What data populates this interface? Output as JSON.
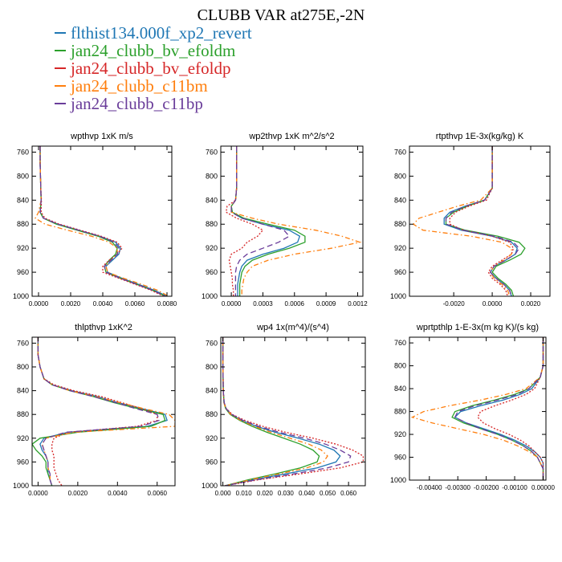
{
  "title": "CLUBB VAR at275E,-2N",
  "legend": [
    {
      "label": "flthist134.000f_xp2_revert",
      "color": "#1f77b4"
    },
    {
      "label": "jan24_clubb_bv_efoldm",
      "color": "#2ca02c"
    },
    {
      "label": "jan24_clubb_bv_efoldp",
      "color": "#d62728"
    },
    {
      "label": "jan24_clubb_c11bm",
      "color": "#ff7f0e"
    },
    {
      "label": "jan24_clubb_c11bp",
      "color": "#6a3d9a"
    }
  ],
  "chart_data": [
    {
      "type": "line",
      "title": "wpthvp  1xK m/s",
      "xlim": [
        -0.0004,
        0.0083
      ],
      "ylim": [
        1000,
        750
      ],
      "xticks": [
        0.0,
        0.002,
        0.004,
        0.006,
        0.008
      ],
      "xticklabels": [
        "0.0000",
        "0.0020",
        "0.0040",
        "0.0060",
        "0.0080"
      ],
      "yticks": [
        760,
        800,
        840,
        880,
        920,
        960,
        1000
      ],
      "y": [
        750,
        760,
        780,
        800,
        820,
        840,
        860,
        870,
        880,
        890,
        900,
        910,
        920,
        930,
        940,
        950,
        960,
        970,
        980,
        990,
        1000
      ],
      "series": [
        {
          "values": [
            0.0001,
            0.0001,
            0.0001,
            0.00012,
            0.00014,
            0.00016,
            0.0001,
            0.0003,
            0.0012,
            0.0025,
            0.0038,
            0.0048,
            0.0051,
            0.005,
            0.0046,
            0.0042,
            0.0043,
            0.0052,
            0.0062,
            0.0072,
            0.008
          ]
        },
        {
          "values": [
            0.0001,
            0.0001,
            0.0001,
            0.00012,
            0.00014,
            0.00016,
            0.0001,
            0.0003,
            0.0011,
            0.0024,
            0.0037,
            0.0046,
            0.0049,
            0.0048,
            0.0044,
            0.0041,
            0.0042,
            0.0051,
            0.0061,
            0.0071,
            0.0079
          ]
        },
        {
          "values": [
            0.0001,
            0.0001,
            0.0001,
            0.00012,
            0.00014,
            0.00018,
            0.00016,
            0.0004,
            0.0013,
            0.0026,
            0.0039,
            0.0049,
            0.0052,
            0.0049,
            0.0044,
            0.004,
            0.004,
            0.005,
            0.006,
            0.007,
            0.0078
          ]
        },
        {
          "values": [
            0.0001,
            0.0001,
            0.0001,
            0.00012,
            0.00014,
            0.00016,
            0.0,
            -0.0002,
            0.0004,
            0.0018,
            0.0033,
            0.0044,
            0.0049,
            0.0049,
            0.0045,
            0.0042,
            0.0043,
            0.0053,
            0.0064,
            0.0074,
            0.0081
          ]
        },
        {
          "values": [
            0.0001,
            0.0001,
            0.0001,
            0.00012,
            0.00014,
            0.00016,
            0.0001,
            0.0003,
            0.0012,
            0.0025,
            0.0038,
            0.0047,
            0.005,
            0.0049,
            0.0045,
            0.0041,
            0.0042,
            0.0051,
            0.0061,
            0.0071,
            0.0079
          ]
        }
      ]
    },
    {
      "type": "line",
      "title": "wp2thvp  1xK m^2/s^2",
      "xlim": [
        -0.0001,
        0.00125
      ],
      "ylim": [
        1000,
        750
      ],
      "xticks": [
        0.0,
        0.0003,
        0.0006,
        0.0009,
        0.0012
      ],
      "xticklabels": [
        "0.0000",
        "0.0003",
        "0.0006",
        "0.0009",
        "0.0012"
      ],
      "yticks": [
        760,
        800,
        840,
        880,
        920,
        960,
        1000
      ],
      "y": [
        750,
        760,
        780,
        800,
        820,
        840,
        850,
        860,
        870,
        880,
        890,
        900,
        910,
        920,
        930,
        940,
        950,
        960,
        970,
        980,
        990,
        1000
      ],
      "series": [
        {
          "values": [
            5e-05,
            5e-05,
            5e-05,
            5e-05,
            5e-05,
            4e-05,
            0.0,
            1e-05,
            0.0001,
            0.0003,
            0.00055,
            0.00065,
            0.00063,
            0.0005,
            0.0003,
            0.00015,
            0.0001,
            8e-05,
            7e-05,
            6e-05,
            6e-05,
            6e-05
          ]
        },
        {
          "values": [
            5e-05,
            5e-05,
            5e-05,
            5e-05,
            5e-05,
            4e-05,
            0.0,
            1e-05,
            0.00012,
            0.00035,
            0.0006,
            0.0007,
            0.0007,
            0.00055,
            0.00035,
            0.0002,
            0.00013,
            0.0001,
            9e-05,
            8e-05,
            8e-05,
            8e-05
          ]
        },
        {
          "values": [
            5e-05,
            5e-05,
            5e-05,
            5e-05,
            5e-05,
            4e-05,
            -4e-05,
            -5e-05,
            5e-05,
            0.0002,
            0.0003,
            0.00025,
            0.00015,
            0.0001,
            0.0,
            -2e-05,
            -1e-05,
            0.0,
            1e-05,
            1e-05,
            2e-05,
            2e-05
          ]
        },
        {
          "values": [
            5e-05,
            5e-05,
            5e-05,
            5e-05,
            5e-05,
            4e-05,
            0.0,
            0.0,
            0.0002,
            0.00045,
            0.0008,
            0.00105,
            0.00122,
            0.00095,
            0.0006,
            0.00035,
            0.0002,
            0.00015,
            0.00012,
            0.00011,
            0.0001,
            0.0001
          ]
        },
        {
          "values": [
            5e-05,
            5e-05,
            5e-05,
            5e-05,
            5e-05,
            4e-05,
            0.0,
            0.0,
            0.0001,
            0.0003,
            0.0005,
            0.00055,
            0.00045,
            0.0003,
            0.00015,
            8e-05,
            5e-05,
            4e-05,
            4e-05,
            4e-05,
            4e-05,
            4e-05
          ]
        }
      ]
    },
    {
      "type": "line",
      "title": "rtpthvp  1E-3x(kg/kg) K",
      "xlim": [
        -0.0043,
        0.003
      ],
      "ylim": [
        1000,
        750
      ],
      "xticks": [
        -0.002,
        0.0,
        0.002
      ],
      "xticklabels": [
        "-0.0020",
        "0.0000",
        "0.0020"
      ],
      "yticks": [
        760,
        800,
        840,
        880,
        920,
        960,
        1000
      ],
      "y": [
        750,
        760,
        780,
        800,
        820,
        840,
        850,
        860,
        870,
        880,
        890,
        900,
        910,
        920,
        930,
        940,
        950,
        960,
        970,
        980,
        990,
        1000
      ],
      "series": [
        {
          "values": [
            0.0,
            0.0,
            0.0,
            0.0,
            0.0,
            -0.0004,
            -0.0014,
            -0.0022,
            -0.0025,
            -0.0025,
            -0.0016,
            0.0,
            0.001,
            0.0013,
            0.0012,
            0.0007,
            0.0001,
            -0.0001,
            0.0002,
            0.0006,
            0.0009,
            0.001
          ]
        },
        {
          "values": [
            0.0,
            0.0,
            0.0,
            0.0,
            0.0,
            -0.0004,
            -0.0013,
            -0.002,
            -0.0024,
            -0.0024,
            -0.0014,
            0.0003,
            0.0014,
            0.0017,
            0.0015,
            0.0009,
            0.0002,
            0.0,
            0.0003,
            0.0007,
            0.001,
            0.0011
          ]
        },
        {
          "values": [
            0.0,
            0.0,
            0.0,
            0.0,
            0.0,
            -0.0003,
            -0.0012,
            -0.0019,
            -0.0022,
            -0.0022,
            -0.0015,
            0.0,
            0.0009,
            0.0011,
            0.001,
            0.0005,
            0.0,
            -0.0002,
            0.0,
            0.0004,
            0.0007,
            0.0008
          ]
        },
        {
          "values": [
            0.0,
            0.0,
            0.0,
            0.0,
            0.0,
            -0.0006,
            -0.0018,
            -0.0028,
            -0.0038,
            -0.0041,
            -0.0036,
            -0.0011,
            0.0005,
            0.001,
            0.001,
            0.0006,
            0.0001,
            -0.0001,
            0.0001,
            0.0005,
            0.0008,
            0.0009
          ]
        },
        {
          "values": [
            0.0,
            0.0,
            0.0,
            0.0,
            0.0,
            -0.0004,
            -0.0014,
            -0.0021,
            -0.0024,
            -0.0024,
            -0.0015,
            0.0001,
            0.0011,
            0.0014,
            0.0012,
            0.0007,
            0.0001,
            -0.0001,
            0.0002,
            0.0006,
            0.0009,
            0.001
          ]
        }
      ]
    },
    {
      "type": "line",
      "title": "thlpthvp  1xK^2",
      "xlim": [
        -0.0003,
        0.0069
      ],
      "ylim": [
        1000,
        750
      ],
      "xticks": [
        0.0,
        0.002,
        0.004,
        0.006
      ],
      "xticklabels": [
        "0.0000",
        "0.0020",
        "0.0040",
        "0.0060"
      ],
      "yticks": [
        760,
        800,
        840,
        880,
        920,
        960,
        1000
      ],
      "y": [
        750,
        760,
        780,
        800,
        820,
        830,
        840,
        850,
        860,
        870,
        880,
        890,
        900,
        910,
        920,
        930,
        940,
        950,
        960,
        970,
        980,
        990,
        1000
      ],
      "series": [
        {
          "values": [
            0.0,
            0.0,
            0.0,
            0.0001,
            0.0003,
            0.0007,
            0.0017,
            0.003,
            0.004,
            0.0052,
            0.0064,
            0.0065,
            0.0055,
            0.0015,
            0.0003,
            0.0001,
            0.0002,
            0.0004,
            0.0005,
            0.0005,
            0.0005,
            0.0006,
            0.0007
          ]
        },
        {
          "values": [
            0.0,
            0.0,
            0.0,
            0.0001,
            0.0003,
            0.0007,
            0.0016,
            0.0028,
            0.0038,
            0.005,
            0.0063,
            0.0064,
            0.0057,
            0.002,
            0.0001,
            -0.0003,
            -0.0001,
            0.0002,
            0.0004,
            0.0004,
            0.0005,
            0.0006,
            0.0007
          ]
        },
        {
          "values": [
            0.0,
            0.0,
            0.0,
            0.0001,
            0.0003,
            0.0008,
            0.0018,
            0.0032,
            0.0042,
            0.0052,
            0.006,
            0.006,
            0.005,
            0.0015,
            0.0008,
            0.0007,
            0.0007,
            0.0008,
            0.0008,
            0.0008,
            0.0009,
            0.001,
            0.0012
          ]
        },
        {
          "values": [
            0.0,
            0.0,
            0.0,
            0.0001,
            0.0003,
            0.0007,
            0.0016,
            0.0029,
            0.0041,
            0.0053,
            0.0066,
            0.0069,
            0.0069,
            0.0018,
            0.0004,
            0.0002,
            0.0003,
            0.0004,
            0.0005,
            0.0005,
            0.0006,
            0.0006,
            0.0007
          ]
        },
        {
          "values": [
            0.0,
            0.0,
            0.0,
            0.0001,
            0.0003,
            0.0007,
            0.0016,
            0.0028,
            0.0039,
            0.0049,
            0.006,
            0.0061,
            0.0052,
            0.0014,
            0.0004,
            0.0002,
            0.0003,
            0.0004,
            0.0005,
            0.0005,
            0.0006,
            0.0006,
            0.0007
          ]
        }
      ]
    },
    {
      "type": "line",
      "title": "wp4  1x(m^4)/(s^4)",
      "xlim": [
        -0.001,
        0.068
      ],
      "ylim": [
        1000,
        750
      ],
      "xticks": [
        0.0,
        0.01,
        0.02,
        0.03,
        0.04,
        0.05,
        0.06
      ],
      "xticklabels": [
        "0.000",
        "0.010",
        "0.020",
        "0.030",
        "0.040",
        "0.050",
        "0.060"
      ],
      "yticks": [
        760,
        800,
        840,
        880,
        920,
        960,
        1000
      ],
      "y": [
        750,
        760,
        780,
        800,
        820,
        840,
        860,
        870,
        880,
        890,
        900,
        910,
        920,
        930,
        940,
        950,
        960,
        970,
        980,
        990,
        1000
      ],
      "series": [
        {
          "values": [
            0.0,
            0.0,
            0.0,
            0.0,
            0.0001,
            0.0002,
            0.0006,
            0.0015,
            0.004,
            0.009,
            0.016,
            0.025,
            0.036,
            0.046,
            0.053,
            0.056,
            0.054,
            0.045,
            0.03,
            0.014,
            0.001
          ]
        },
        {
          "values": [
            0.0,
            0.0,
            0.0,
            0.0,
            0.0001,
            0.0002,
            0.0005,
            0.0013,
            0.0035,
            0.008,
            0.014,
            0.021,
            0.029,
            0.037,
            0.043,
            0.046,
            0.045,
            0.037,
            0.025,
            0.012,
            0.001
          ]
        },
        {
          "values": [
            0.0,
            0.0,
            0.0,
            0.0,
            0.0001,
            0.0002,
            0.0006,
            0.0016,
            0.0045,
            0.0105,
            0.019,
            0.03,
            0.043,
            0.054,
            0.062,
            0.067,
            0.067,
            0.056,
            0.037,
            0.017,
            0.001
          ]
        },
        {
          "values": [
            0.0,
            0.0,
            0.0,
            0.0,
            0.0001,
            0.0002,
            0.0005,
            0.0014,
            0.0038,
            0.0085,
            0.015,
            0.023,
            0.032,
            0.041,
            0.047,
            0.05,
            0.048,
            0.04,
            0.027,
            0.013,
            0.001
          ]
        },
        {
          "values": [
            0.0,
            0.0,
            0.0,
            0.0,
            0.0001,
            0.0002,
            0.0006,
            0.0015,
            0.0042,
            0.0095,
            0.017,
            0.027,
            0.039,
            0.049,
            0.056,
            0.061,
            0.06,
            0.05,
            0.034,
            0.016,
            0.001
          ]
        }
      ]
    },
    {
      "type": "line",
      "title": "wprtpthlp  1-E-3x(m kg K)/(s kg)",
      "xlim": [
        -0.0047,
        0.0001
      ],
      "ylim": [
        1000,
        750
      ],
      "xticks": [
        -0.004,
        -0.003,
        -0.002,
        -0.001,
        0.0
      ],
      "xticklabels": [
        "-0.00400",
        "-0.00300",
        "-0.00200",
        "-0.00100",
        "0.00000"
      ],
      "yticks": [
        760,
        800,
        840,
        880,
        920,
        960,
        1000
      ],
      "y": [
        750,
        760,
        780,
        800,
        820,
        840,
        850,
        860,
        870,
        880,
        890,
        900,
        910,
        920,
        930,
        940,
        950,
        960,
        970,
        980,
        990,
        1000
      ],
      "series": [
        {
          "values": [
            0.0,
            0.0,
            0.0,
            0.0,
            -0.0001,
            -0.0004,
            -0.0008,
            -0.0014,
            -0.0022,
            -0.0029,
            -0.0031,
            -0.0027,
            -0.0021,
            -0.0015,
            -0.001,
            -0.0006,
            -0.0003,
            -0.0001,
            0.0,
            0.0,
            0.0,
            0.0
          ]
        },
        {
          "values": [
            0.0,
            0.0,
            0.0,
            0.0,
            -0.0001,
            -0.0005,
            -0.001,
            -0.0017,
            -0.0025,
            -0.0031,
            -0.0032,
            -0.0028,
            -0.0022,
            -0.0016,
            -0.0011,
            -0.0007,
            -0.0004,
            -0.0002,
            -0.0001,
            0.0,
            0.0,
            0.0
          ]
        },
        {
          "values": [
            0.0,
            0.0,
            0.0,
            0.0,
            -0.0001,
            -0.0003,
            -0.0006,
            -0.0011,
            -0.0017,
            -0.0022,
            -0.0023,
            -0.0021,
            -0.0017,
            -0.0012,
            -0.0008,
            -0.0005,
            -0.0003,
            -0.0001,
            0.0,
            0.0,
            0.0,
            0.0
          ]
        },
        {
          "values": [
            0.0,
            0.0,
            0.0,
            0.0,
            -0.0001,
            -0.0006,
            -0.0013,
            -0.0022,
            -0.0033,
            -0.0042,
            -0.0046,
            -0.0039,
            -0.003,
            -0.0021,
            -0.0014,
            -0.0009,
            -0.0005,
            -0.0002,
            -0.0001,
            0.0,
            0.0,
            0.0
          ]
        },
        {
          "values": [
            0.0,
            0.0,
            0.0,
            0.0,
            -0.0001,
            -0.0005,
            -0.0009,
            -0.0016,
            -0.0024,
            -0.003,
            -0.0031,
            -0.0027,
            -0.0022,
            -0.0016,
            -0.0011,
            -0.0007,
            -0.0004,
            -0.0002,
            -0.0001,
            0.0,
            0.0,
            0.0
          ]
        }
      ]
    }
  ]
}
